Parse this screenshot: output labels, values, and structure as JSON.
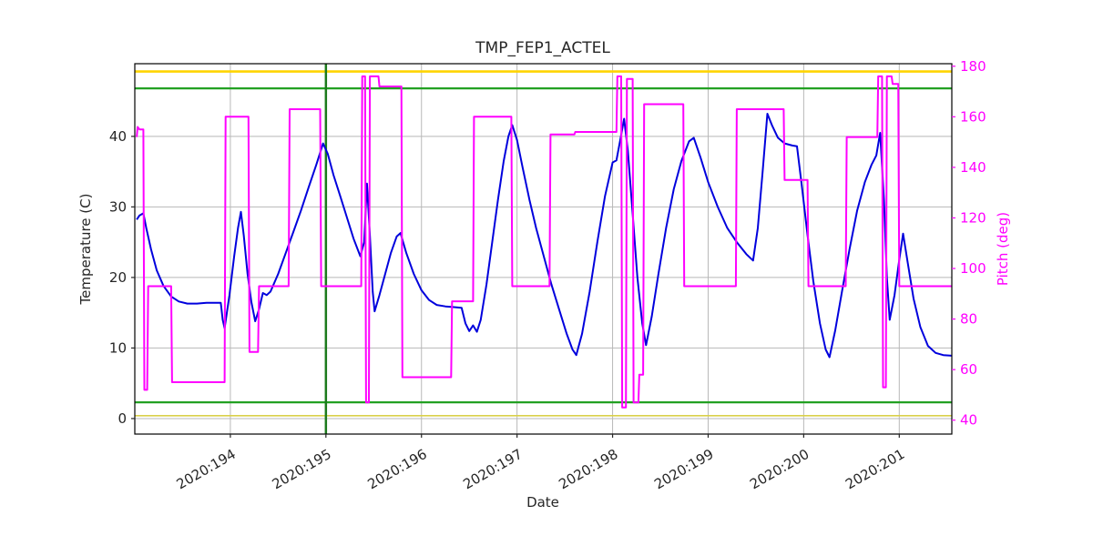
{
  "chart_data": {
    "type": "line",
    "title": "TMP_FEP1_ACTEL",
    "xlabel": "Date",
    "ylabel_left": "Temperature (C)",
    "ylabel_right": "Pitch (deg)",
    "grid": true,
    "legend": "none",
    "xlim": [
      193.0,
      201.55
    ],
    "ylim_left": [
      -2.2,
      50.3
    ],
    "ylim_right": [
      34.5,
      181.0
    ],
    "x_ticks": [
      194,
      195,
      196,
      197,
      198,
      199,
      200,
      201
    ],
    "x_tick_labels": [
      "2020:194",
      "2020:195",
      "2020:196",
      "2020:197",
      "2020:198",
      "2020:199",
      "2020:200",
      "2020:201"
    ],
    "y_ticks_left": [
      0,
      10,
      20,
      30,
      40
    ],
    "y_tick_labels_left": [
      "0",
      "10",
      "20",
      "30",
      "40"
    ],
    "y_ticks_right": [
      40,
      60,
      80,
      100,
      120,
      140,
      160,
      180
    ],
    "y_tick_labels_right": [
      "40",
      "60",
      "80",
      "100",
      "120",
      "140",
      "160",
      "180"
    ],
    "style": {
      "grid_color": "#b8b8b8",
      "frame_color": "#000000",
      "tick_color": "#262626",
      "right_axis_color": "#ff00ff",
      "background": "#ffffff"
    },
    "limit_lines": [
      {
        "name": "yellow-high",
        "axis": "left",
        "value": 49.2,
        "color": "#ffd400",
        "width": 2.6
      },
      {
        "name": "green-high",
        "axis": "left",
        "value": 46.8,
        "color": "#22a022",
        "width": 2.2
      },
      {
        "name": "green-low",
        "axis": "left",
        "value": 2.3,
        "color": "#22a022",
        "width": 2.2
      },
      {
        "name": "yellow-low",
        "axis": "left",
        "value": 0.4,
        "color": "#d9d04b",
        "width": 1.6
      }
    ],
    "vertical_lines": [
      {
        "name": "current-time",
        "x": 195.0,
        "color": "#1c7a1c",
        "width": 2.5
      }
    ],
    "series": [
      {
        "name": "temperature",
        "axis": "left",
        "color": "#0000dd",
        "width": 2,
        "points": [
          [
            193.02,
            28.2
          ],
          [
            193.05,
            28.8
          ],
          [
            193.09,
            29.1
          ],
          [
            193.12,
            27.0
          ],
          [
            193.17,
            24.0
          ],
          [
            193.23,
            21.0
          ],
          [
            193.3,
            18.8
          ],
          [
            193.38,
            17.3
          ],
          [
            193.46,
            16.6
          ],
          [
            193.55,
            16.3
          ],
          [
            193.65,
            16.3
          ],
          [
            193.75,
            16.4
          ],
          [
            193.85,
            16.4
          ],
          [
            193.9,
            16.4
          ],
          [
            193.92,
            14.0
          ],
          [
            193.94,
            12.8
          ],
          [
            193.99,
            17.5
          ],
          [
            194.04,
            23.0
          ],
          [
            194.08,
            27.0
          ],
          [
            194.11,
            29.3
          ],
          [
            194.14,
            26.0
          ],
          [
            194.18,
            20.5
          ],
          [
            194.22,
            16.5
          ],
          [
            194.26,
            13.8
          ],
          [
            194.3,
            15.5
          ],
          [
            194.34,
            17.8
          ],
          [
            194.38,
            17.5
          ],
          [
            194.42,
            18.0
          ],
          [
            194.5,
            20.5
          ],
          [
            194.58,
            23.5
          ],
          [
            194.66,
            26.5
          ],
          [
            194.74,
            29.5
          ],
          [
            194.82,
            32.8
          ],
          [
            194.9,
            36.0
          ],
          [
            194.97,
            39.0
          ],
          [
            195.02,
            37.5
          ],
          [
            195.08,
            34.5
          ],
          [
            195.15,
            31.5
          ],
          [
            195.22,
            28.5
          ],
          [
            195.29,
            25.5
          ],
          [
            195.36,
            23.0
          ],
          [
            195.4,
            25.0
          ],
          [
            195.43,
            33.3
          ],
          [
            195.46,
            26.0
          ],
          [
            195.49,
            18.0
          ],
          [
            195.51,
            15.2
          ],
          [
            195.56,
            17.5
          ],
          [
            195.62,
            20.5
          ],
          [
            195.68,
            23.5
          ],
          [
            195.74,
            25.8
          ],
          [
            195.78,
            26.3
          ],
          [
            195.84,
            23.5
          ],
          [
            195.92,
            20.5
          ],
          [
            196.0,
            18.2
          ],
          [
            196.08,
            16.8
          ],
          [
            196.16,
            16.1
          ],
          [
            196.25,
            15.9
          ],
          [
            196.34,
            15.8
          ],
          [
            196.42,
            15.7
          ],
          [
            196.46,
            13.5
          ],
          [
            196.5,
            12.4
          ],
          [
            196.54,
            13.2
          ],
          [
            196.58,
            12.3
          ],
          [
            196.62,
            14.0
          ],
          [
            196.68,
            19.0
          ],
          [
            196.74,
            25.0
          ],
          [
            196.8,
            31.0
          ],
          [
            196.86,
            36.5
          ],
          [
            196.91,
            40.0
          ],
          [
            196.95,
            41.6
          ],
          [
            197.0,
            39.5
          ],
          [
            197.06,
            35.5
          ],
          [
            197.13,
            31.0
          ],
          [
            197.2,
            27.0
          ],
          [
            197.28,
            23.0
          ],
          [
            197.36,
            19.0
          ],
          [
            197.44,
            15.5
          ],
          [
            197.52,
            12.0
          ],
          [
            197.58,
            9.8
          ],
          [
            197.62,
            9.0
          ],
          [
            197.68,
            12.0
          ],
          [
            197.76,
            18.0
          ],
          [
            197.84,
            25.0
          ],
          [
            197.92,
            31.5
          ],
          [
            198.0,
            36.3
          ],
          [
            198.04,
            36.6
          ],
          [
            198.08,
            39.5
          ],
          [
            198.12,
            42.5
          ],
          [
            198.16,
            38.0
          ],
          [
            198.21,
            29.0
          ],
          [
            198.26,
            20.0
          ],
          [
            198.31,
            13.5
          ],
          [
            198.35,
            10.4
          ],
          [
            198.41,
            14.5
          ],
          [
            198.48,
            20.5
          ],
          [
            198.56,
            27.0
          ],
          [
            198.64,
            32.5
          ],
          [
            198.72,
            36.5
          ],
          [
            198.8,
            39.3
          ],
          [
            198.85,
            39.8
          ],
          [
            198.92,
            37.0
          ],
          [
            199.0,
            33.5
          ],
          [
            199.1,
            30.0
          ],
          [
            199.2,
            27.0
          ],
          [
            199.3,
            25.0
          ],
          [
            199.4,
            23.3
          ],
          [
            199.47,
            22.4
          ],
          [
            199.52,
            27.0
          ],
          [
            199.57,
            35.0
          ],
          [
            199.62,
            43.2
          ],
          [
            199.67,
            41.5
          ],
          [
            199.73,
            39.8
          ],
          [
            199.8,
            39.0
          ],
          [
            199.88,
            38.7
          ],
          [
            199.93,
            38.6
          ],
          [
            199.98,
            33.0
          ],
          [
            200.04,
            26.0
          ],
          [
            200.1,
            19.5
          ],
          [
            200.17,
            13.5
          ],
          [
            200.23,
            9.8
          ],
          [
            200.27,
            8.7
          ],
          [
            200.33,
            12.5
          ],
          [
            200.4,
            18.0
          ],
          [
            200.48,
            24.0
          ],
          [
            200.56,
            29.5
          ],
          [
            200.64,
            33.5
          ],
          [
            200.71,
            36.0
          ],
          [
            200.76,
            37.3
          ],
          [
            200.8,
            40.5
          ],
          [
            200.84,
            31.0
          ],
          [
            200.87,
            20.0
          ],
          [
            200.9,
            14.0
          ],
          [
            200.95,
            17.5
          ],
          [
            201.0,
            22.5
          ],
          [
            201.04,
            26.2
          ],
          [
            201.09,
            22.0
          ],
          [
            201.15,
            17.0
          ],
          [
            201.22,
            13.0
          ],
          [
            201.3,
            10.3
          ],
          [
            201.38,
            9.3
          ],
          [
            201.46,
            9.0
          ],
          [
            201.55,
            8.9
          ]
        ]
      },
      {
        "name": "pitch",
        "axis": "right",
        "color": "#ff00ff",
        "width": 2,
        "points": [
          [
            193.02,
            152
          ],
          [
            193.03,
            156
          ],
          [
            193.05,
            155
          ],
          [
            193.09,
            155
          ],
          [
            193.1,
            52
          ],
          [
            193.13,
            52
          ],
          [
            193.14,
            93
          ],
          [
            193.38,
            93
          ],
          [
            193.39,
            55
          ],
          [
            193.94,
            55
          ],
          [
            193.95,
            160
          ],
          [
            194.19,
            160
          ],
          [
            194.2,
            67
          ],
          [
            194.29,
            67
          ],
          [
            194.3,
            93
          ],
          [
            194.61,
            93
          ],
          [
            194.62,
            163
          ],
          [
            194.94,
            163
          ],
          [
            194.95,
            93
          ],
          [
            195.37,
            93
          ],
          [
            195.38,
            176
          ],
          [
            195.41,
            176
          ],
          [
            195.42,
            47
          ],
          [
            195.45,
            47
          ],
          [
            195.46,
            176
          ],
          [
            195.55,
            176
          ],
          [
            195.56,
            172
          ],
          [
            195.79,
            172
          ],
          [
            195.8,
            57
          ],
          [
            196.31,
            57
          ],
          [
            196.32,
            87
          ],
          [
            196.54,
            87
          ],
          [
            196.55,
            160
          ],
          [
            196.94,
            160
          ],
          [
            196.95,
            93
          ],
          [
            197.34,
            93
          ],
          [
            197.35,
            153
          ],
          [
            197.6,
            153
          ],
          [
            197.61,
            154
          ],
          [
            198.04,
            154
          ],
          [
            198.05,
            176
          ],
          [
            198.09,
            176
          ],
          [
            198.1,
            45
          ],
          [
            198.14,
            45
          ],
          [
            198.15,
            175
          ],
          [
            198.21,
            175
          ],
          [
            198.22,
            47
          ],
          [
            198.27,
            47
          ],
          [
            198.28,
            58
          ],
          [
            198.32,
            58
          ],
          [
            198.33,
            165
          ],
          [
            198.74,
            165
          ],
          [
            198.75,
            93
          ],
          [
            199.29,
            93
          ],
          [
            199.3,
            163
          ],
          [
            199.79,
            163
          ],
          [
            199.8,
            135
          ],
          [
            200.04,
            135
          ],
          [
            200.05,
            93
          ],
          [
            200.44,
            93
          ],
          [
            200.45,
            152
          ],
          [
            200.77,
            152
          ],
          [
            200.78,
            176
          ],
          [
            200.82,
            176
          ],
          [
            200.83,
            53
          ],
          [
            200.86,
            53
          ],
          [
            200.87,
            176
          ],
          [
            200.92,
            176
          ],
          [
            200.93,
            173
          ],
          [
            200.99,
            173
          ],
          [
            201.0,
            93
          ],
          [
            201.55,
            93
          ]
        ]
      }
    ]
  }
}
